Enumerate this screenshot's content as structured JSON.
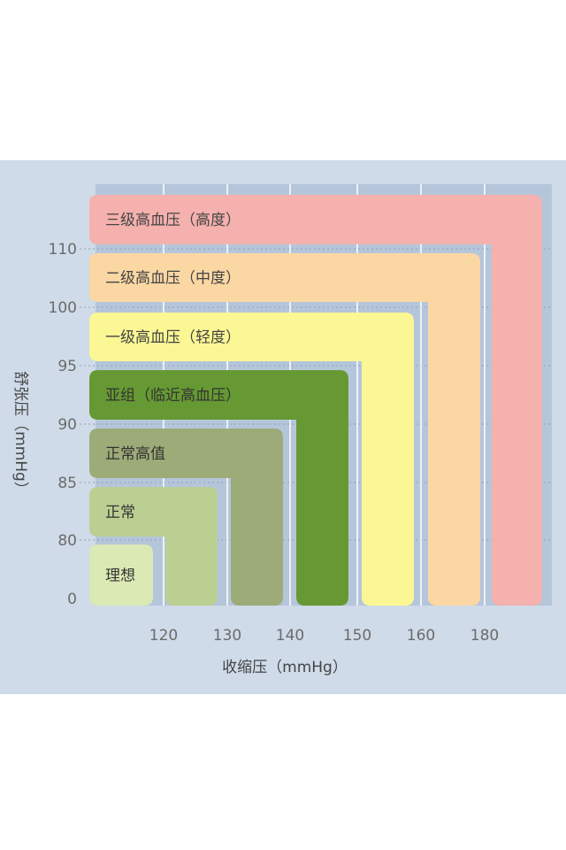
{
  "chart_data": {
    "type": "area",
    "title": "",
    "xlabel": "收缩压（mmHg）",
    "ylabel": "舒张压（mmHg）",
    "x_ticks": [
      "120",
      "130",
      "140",
      "150",
      "160",
      "180"
    ],
    "y_ticks": [
      "0",
      "80",
      "85",
      "90",
      "95",
      "100",
      "110"
    ],
    "zones": [
      {
        "name": "三级高血压（高度）",
        "color": "#f4b1ae",
        "text_color": "#444444"
      },
      {
        "name": "二级高血压（中度）",
        "color": "#fbd7a4",
        "text_color": "#444444"
      },
      {
        "name": "一级高血压（轻度）",
        "color": "#fbf794",
        "text_color": "#444444"
      },
      {
        "name": "亚组（临近高血压）",
        "color": "#669933",
        "text_color": "#333333"
      },
      {
        "name": "正常高值",
        "color": "#9cab77",
        "text_color": "#333333"
      },
      {
        "name": "正常",
        "color": "#bccf92",
        "text_color": "#333333"
      },
      {
        "name": "理想",
        "color": "#dbe9b4",
        "text_color": "#333333"
      }
    ],
    "grid": true,
    "colors": {
      "panel": "#cfdbe8",
      "plot": "#b5c6db",
      "grid": "#ffffff"
    }
  }
}
